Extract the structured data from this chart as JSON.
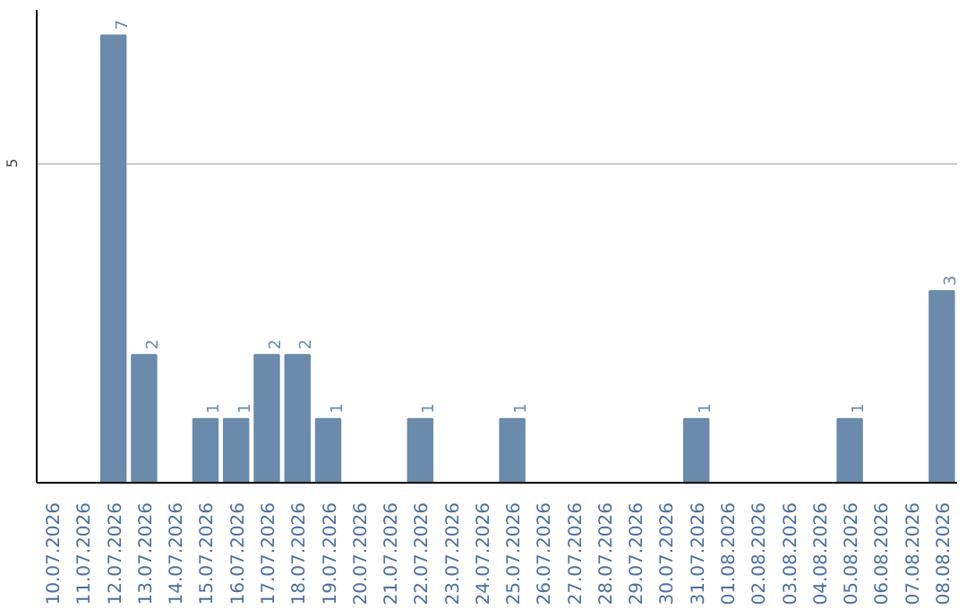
{
  "chart_data": {
    "type": "bar",
    "categories": [
      "10.07.2026",
      "11.07.2026",
      "12.07.2026",
      "13.07.2026",
      "14.07.2026",
      "15.07.2026",
      "16.07.2026",
      "17.07.2026",
      "18.07.2026",
      "19.07.2026",
      "20.07.2026",
      "21.07.2026",
      "22.07.2026",
      "23.07.2026",
      "24.07.2026",
      "25.07.2026",
      "26.07.2026",
      "27.07.2026",
      "28.07.2026",
      "29.07.2026",
      "30.07.2026",
      "31.07.2026",
      "01.08.2026",
      "02.08.2026",
      "03.08.2026",
      "04.08.2026",
      "05.08.2026",
      "06.08.2026",
      "07.08.2026",
      "08.08.2026"
    ],
    "values": [
      0,
      0,
      7,
      2,
      0,
      1,
      1,
      2,
      2,
      1,
      0,
      0,
      1,
      0,
      0,
      1,
      0,
      0,
      0,
      0,
      0,
      1,
      0,
      0,
      0,
      0,
      1,
      0,
      0,
      3
    ],
    "value_labels": [
      null,
      null,
      "7",
      "2",
      null,
      "1",
      "1",
      "2",
      "2",
      "1",
      null,
      null,
      "1",
      null,
      null,
      "1",
      null,
      null,
      null,
      null,
      null,
      "1",
      null,
      null,
      null,
      null,
      "1",
      null,
      null,
      "3"
    ],
    "color": "#6a8bab",
    "ylim": [
      0,
      7.4
    ],
    "yticks": [
      5
    ],
    "grid": "y"
  }
}
